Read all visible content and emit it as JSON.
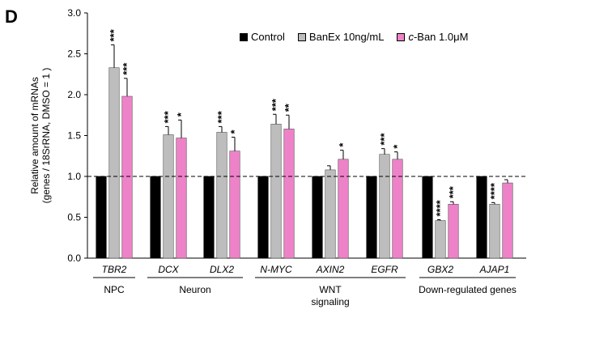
{
  "panel_label": "D",
  "legend": [
    {
      "label": "Control",
      "color": "#000000"
    },
    {
      "label": "BanEx 10ng/mL",
      "color": "#bdbdbd"
    },
    {
      "label_italic": "c",
      "label": "-Ban 1.0μM",
      "color": "#ee82c8"
    }
  ],
  "chart_data": {
    "type": "bar",
    "ylabel_line1": "Relative amount of mRNAs",
    "ylabel_line2": "(genes / 18SrRNA, DMSO = 1 )",
    "ylim": [
      0,
      3.0
    ],
    "yticks": [
      "0.0",
      "0.5",
      "1.0",
      "1.5",
      "2.0",
      "2.5",
      "3.0"
    ],
    "reference_line": 1.0,
    "categories": [
      "TBR2",
      "DCX",
      "DLX2",
      "N-MYC",
      "AXIN2",
      "EGFR",
      "GBX2",
      "AJAP1"
    ],
    "series": [
      {
        "name": "Control",
        "color": "#000000",
        "values": [
          1.0,
          1.0,
          1.0,
          1.0,
          1.0,
          1.0,
          1.0,
          1.0
        ],
        "errors": [
          0,
          0,
          0,
          0,
          0,
          0,
          0,
          0
        ],
        "stars": [
          "",
          "",
          "",
          "",
          "",
          "",
          "",
          ""
        ]
      },
      {
        "name": "BanEx 10ng/mL",
        "color": "#bdbdbd",
        "values": [
          2.33,
          1.51,
          1.54,
          1.64,
          1.08,
          1.27,
          0.46,
          0.66
        ],
        "errors": [
          0.28,
          0.1,
          0.07,
          0.12,
          0.05,
          0.07,
          0.01,
          0.02
        ],
        "stars": [
          "***",
          "***",
          "***",
          "***",
          "",
          "***",
          "****",
          "****"
        ]
      },
      {
        "name": "c-Ban 1.0μM",
        "color": "#ee82c8",
        "values": [
          1.98,
          1.47,
          1.31,
          1.58,
          1.21,
          1.21,
          0.66,
          0.92
        ],
        "errors": [
          0.22,
          0.22,
          0.17,
          0.17,
          0.11,
          0.09,
          0.03,
          0.04
        ],
        "stars": [
          "***",
          "*",
          "*",
          "**",
          "*",
          "*",
          "***",
          ""
        ]
      }
    ],
    "groups": [
      {
        "label": "NPC",
        "from": 0,
        "to": 0
      },
      {
        "label": "Neuron",
        "from": 1,
        "to": 2
      },
      {
        "label": "WNT",
        "label2": "signaling",
        "from": 3,
        "to": 5
      },
      {
        "label": "Down-regulated genes",
        "from": 6,
        "to": 7
      }
    ]
  }
}
